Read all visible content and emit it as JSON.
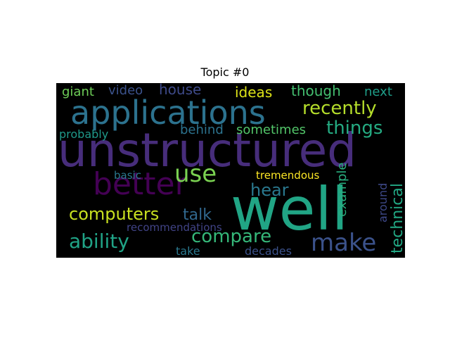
{
  "title": "Topic #0",
  "words": [
    {
      "text": "unstructured",
      "color": "#472d7b"
    },
    {
      "text": "well",
      "color": "#21a585"
    },
    {
      "text": "applications",
      "color": "#2c728e"
    },
    {
      "text": "better",
      "color": "#440154"
    },
    {
      "text": "use",
      "color": "#7ad151"
    },
    {
      "text": "make",
      "color": "#3b528b"
    },
    {
      "text": "computers",
      "color": "#c8e020"
    },
    {
      "text": "ability",
      "color": "#20a386"
    },
    {
      "text": "compare",
      "color": "#35b779"
    },
    {
      "text": "recently",
      "color": "#b5de2b"
    },
    {
      "text": "things",
      "color": "#25ab82"
    },
    {
      "text": "hear",
      "color": "#2a788e"
    },
    {
      "text": "talk",
      "color": "#31688e"
    },
    {
      "text": "ideas",
      "color": "#dde318"
    },
    {
      "text": "though",
      "color": "#44bf70"
    },
    {
      "text": "sometimes",
      "color": "#52c569"
    },
    {
      "text": "behind",
      "color": "#2c728e"
    },
    {
      "text": "house",
      "color": "#3e4a89"
    },
    {
      "text": "video",
      "color": "#3b528b"
    },
    {
      "text": "giant",
      "color": "#6ece58"
    },
    {
      "text": "next",
      "color": "#1f9e89"
    },
    {
      "text": "probably",
      "color": "#1f9a8a"
    },
    {
      "text": "example",
      "color": "#29af7f"
    },
    {
      "text": "technical",
      "color": "#22a884"
    },
    {
      "text": "around",
      "color": "#3e4989"
    },
    {
      "text": "tremendous",
      "color": "#fde725"
    },
    {
      "text": "basic",
      "color": "#2a788e"
    },
    {
      "text": "recommendations",
      "color": "#414487"
    },
    {
      "text": "take",
      "color": "#2a788e"
    },
    {
      "text": "decades",
      "color": "#3b528b"
    }
  ]
}
